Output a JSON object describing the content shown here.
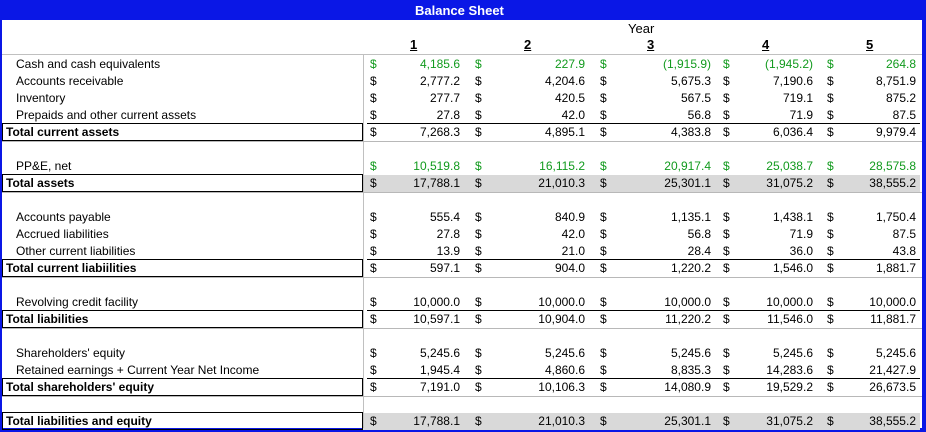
{
  "title": "Balance Sheet",
  "year_label": "Year",
  "years": [
    "1",
    "2",
    "3",
    "4",
    "5"
  ],
  "currency_symbol": "$",
  "colors": {
    "frame": "#0a17e6",
    "highlight": "#119a1d",
    "total_shade": "#d9d9d9"
  },
  "rows": [
    {
      "label": "Cash and cash equivalents",
      "values": [
        "4,185.6",
        "227.9",
        "(1,915.9)",
        "(1,945.2)",
        "264.8"
      ],
      "bold": false,
      "green": true
    },
    {
      "label": "Accounts receivable",
      "values": [
        "2,777.2",
        "4,204.6",
        "5,675.3",
        "7,190.6",
        "8,751.9"
      ],
      "bold": false,
      "green": false
    },
    {
      "label": "Inventory",
      "values": [
        "277.7",
        "420.5",
        "567.5",
        "719.1",
        "875.2"
      ],
      "bold": false,
      "green": false
    },
    {
      "label": "Prepaids and other current assets",
      "values": [
        "27.8",
        "42.0",
        "56.8",
        "71.9",
        "87.5"
      ],
      "bold": false,
      "green": false
    },
    {
      "label": "Total current assets",
      "values": [
        "7,268.3",
        "4,895.1",
        "4,383.8",
        "6,036.4",
        "9,979.4"
      ],
      "bold": true,
      "green": false
    },
    {
      "label": "PP&E, net",
      "values": [
        "10,519.8",
        "16,115.2",
        "20,917.4",
        "25,038.7",
        "28,575.8"
      ],
      "bold": false,
      "green": true
    },
    {
      "label": "Total assets",
      "values": [
        "17,788.1",
        "21,010.3",
        "25,301.1",
        "31,075.2",
        "38,555.2"
      ],
      "bold": true,
      "green": false
    },
    {
      "label": "Accounts payable",
      "values": [
        "555.4",
        "840.9",
        "1,135.1",
        "1,438.1",
        "1,750.4"
      ],
      "bold": false,
      "green": false
    },
    {
      "label": "Accrued liabilities",
      "values": [
        "27.8",
        "42.0",
        "56.8",
        "71.9",
        "87.5"
      ],
      "bold": false,
      "green": false
    },
    {
      "label": "Other current liabilities",
      "values": [
        "13.9",
        "21.0",
        "28.4",
        "36.0",
        "43.8"
      ],
      "bold": false,
      "green": false
    },
    {
      "label": "Total current liabiilities",
      "values": [
        "597.1",
        "904.0",
        "1,220.2",
        "1,546.0",
        "1,881.7"
      ],
      "bold": true,
      "green": false
    },
    {
      "label": "Revolving credit facility",
      "values": [
        "10,000.0",
        "10,000.0",
        "10,000.0",
        "10,000.0",
        "10,000.0"
      ],
      "bold": false,
      "green": false
    },
    {
      "label": "Total liabilities",
      "values": [
        "10,597.1",
        "10,904.0",
        "11,220.2",
        "11,546.0",
        "11,881.7"
      ],
      "bold": true,
      "green": false
    },
    {
      "label": "Shareholders' equity",
      "values": [
        "5,245.6",
        "5,245.6",
        "5,245.6",
        "5,245.6",
        "5,245.6"
      ],
      "bold": false,
      "green": false
    },
    {
      "label": "Retained earnings + Current Year Net Income",
      "values": [
        "1,945.4",
        "4,860.6",
        "8,835.3",
        "14,283.6",
        "21,427.9"
      ],
      "bold": false,
      "green": false
    },
    {
      "label": "Total shareholders' equity",
      "values": [
        "7,191.0",
        "10,106.3",
        "14,080.9",
        "19,529.2",
        "26,673.5"
      ],
      "bold": true,
      "green": false
    },
    {
      "label": "Total liabilities and equity",
      "values": [
        "17,788.1",
        "21,010.3",
        "25,301.1",
        "31,075.2",
        "38,555.2"
      ],
      "bold": true,
      "green": false
    }
  ]
}
